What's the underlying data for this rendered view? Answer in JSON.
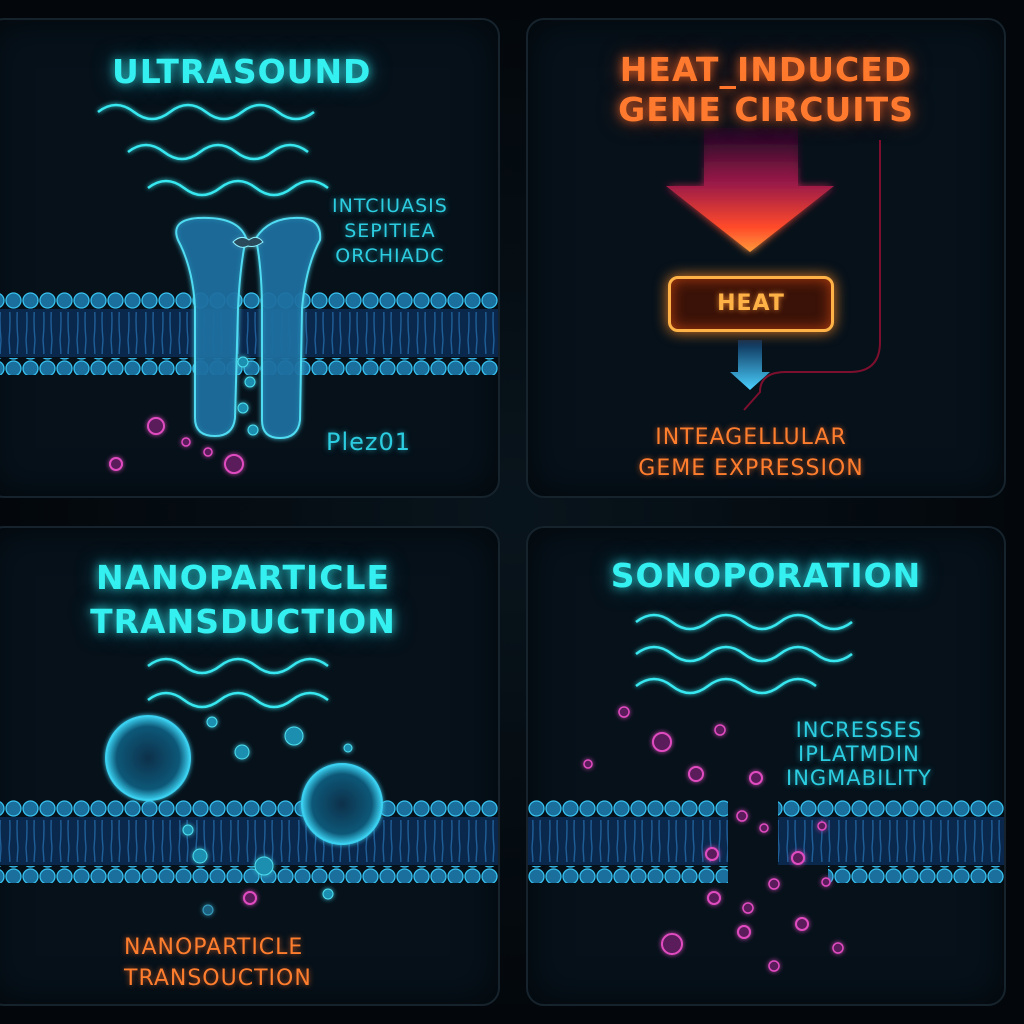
{
  "panels": {
    "ultrasound": {
      "title": "ULTRASOUND",
      "annotation": [
        "INTCIUASIS",
        "SEPITIEA",
        "ORCHIADC"
      ],
      "channel_label": "Plez01"
    },
    "heat": {
      "title_line1": "HEAT_INDUCED",
      "title_line2": "GENE CIRCUITS",
      "box_label": "HEAT",
      "caption_line1": "INTEAGELLULAR",
      "caption_line2": "GEME EXPRESSION"
    },
    "nanoparticle": {
      "title_line1": "NANOPARTICLE",
      "title_line2": "TRANSDUCTION",
      "caption_line1": "NANOPARTICLE",
      "caption_line2": "TRANSOUCTION"
    },
    "sonoporation": {
      "title": "SONOPORATION",
      "annotation": [
        "INCRESSES",
        "IPLATMDIN",
        "INGMABILITY"
      ]
    }
  },
  "colors": {
    "cyan": "#34f0f0",
    "orange": "#ff7a2e",
    "membrane": "#2fb0e0",
    "particle_magenta": "#e04cc0",
    "heat_box_border": "#ffb347"
  },
  "icons": [
    "ultrasound-wave-icon",
    "ion-channel-icon",
    "down-arrow-icon",
    "nanoparticle-icon",
    "membrane-icon"
  ]
}
